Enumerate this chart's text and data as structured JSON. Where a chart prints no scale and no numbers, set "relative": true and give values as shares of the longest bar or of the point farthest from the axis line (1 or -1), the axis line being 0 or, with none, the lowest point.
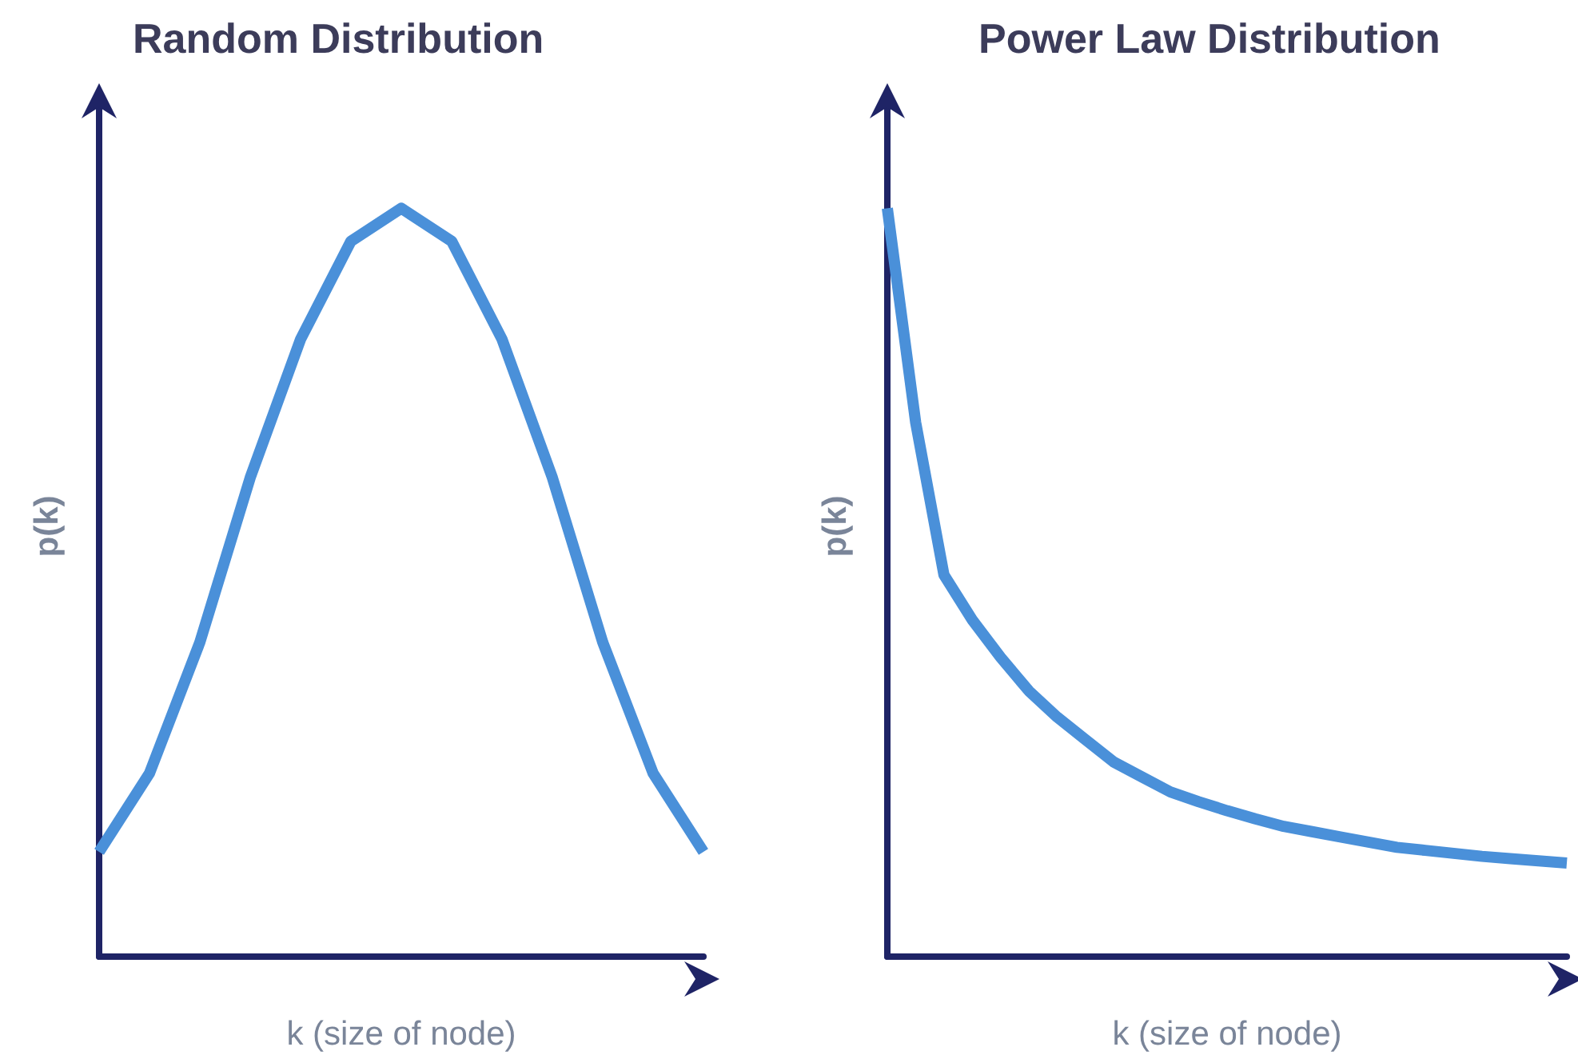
{
  "chart_data": [
    {
      "type": "line",
      "title": "Random Distribution",
      "xlabel": "k (size of node)",
      "ylabel": "p(k)",
      "relative": true,
      "tick_labels": false,
      "marker": "none",
      "categories": [
        null,
        null,
        null,
        null,
        null,
        null,
        null,
        null,
        null,
        null,
        null,
        null,
        null
      ],
      "series": [
        {
          "color": "#4a90d9",
          "values": [
            0.14,
            0.245,
            0.42,
            0.64,
            0.825,
            0.956,
            1,
            0.956,
            0.825,
            0.64,
            0.42,
            0.245,
            0.14
          ]
        }
      ]
    },
    {
      "type": "line",
      "title": "Power Law Distribution",
      "xlabel": "k (size of node)",
      "ylabel": "p(k)",
      "relative": true,
      "tick_labels": false,
      "marker": "none",
      "categories": [
        null,
        null,
        null,
        null,
        null,
        null,
        null,
        null,
        null,
        null,
        null,
        null,
        null,
        null,
        null,
        null,
        null,
        null,
        null,
        null,
        null,
        null,
        null,
        null,
        null
      ],
      "series": [
        {
          "color": "#4a90d9",
          "values": [
            1,
            0.714,
            0.51,
            0.45,
            0.4,
            0.355,
            0.32,
            0.29,
            0.26,
            0.24,
            0.22,
            0.207,
            0.195,
            0.184,
            0.174,
            0.167,
            0.16,
            0.153,
            0.146,
            0.142,
            0.138,
            0.134,
            0.131,
            0.128,
            0.125
          ]
        }
      ]
    }
  ]
}
